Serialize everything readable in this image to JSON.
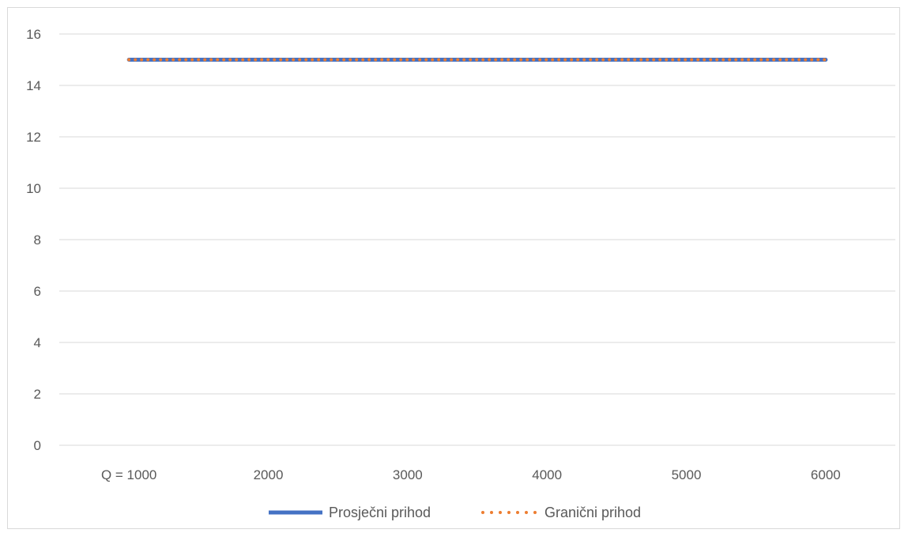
{
  "chart_data": {
    "type": "line",
    "title": "",
    "xlabel": "",
    "ylabel": "",
    "categories": [
      "Q = 1000",
      "2000",
      "3000",
      "4000",
      "5000",
      "6000"
    ],
    "x": [
      1000,
      2000,
      3000,
      4000,
      5000,
      6000
    ],
    "ylim": [
      0,
      16
    ],
    "yticks": [
      0,
      2,
      4,
      6,
      8,
      10,
      12,
      14,
      16
    ],
    "yticklabels": [
      "0",
      "2",
      "4",
      "6",
      "8",
      "10",
      "12",
      "14",
      "16"
    ],
    "grid": true,
    "legend_position": "bottom",
    "series": [
      {
        "name": "Prosječni prihod",
        "values": [
          15,
          15,
          15,
          15,
          15,
          15
        ],
        "color": "#4472c4",
        "style": "solid"
      },
      {
        "name": "Granični prihod",
        "values": [
          15,
          15,
          15,
          15,
          15,
          15
        ],
        "color": "#ed7d31",
        "style": "dotted"
      }
    ]
  }
}
